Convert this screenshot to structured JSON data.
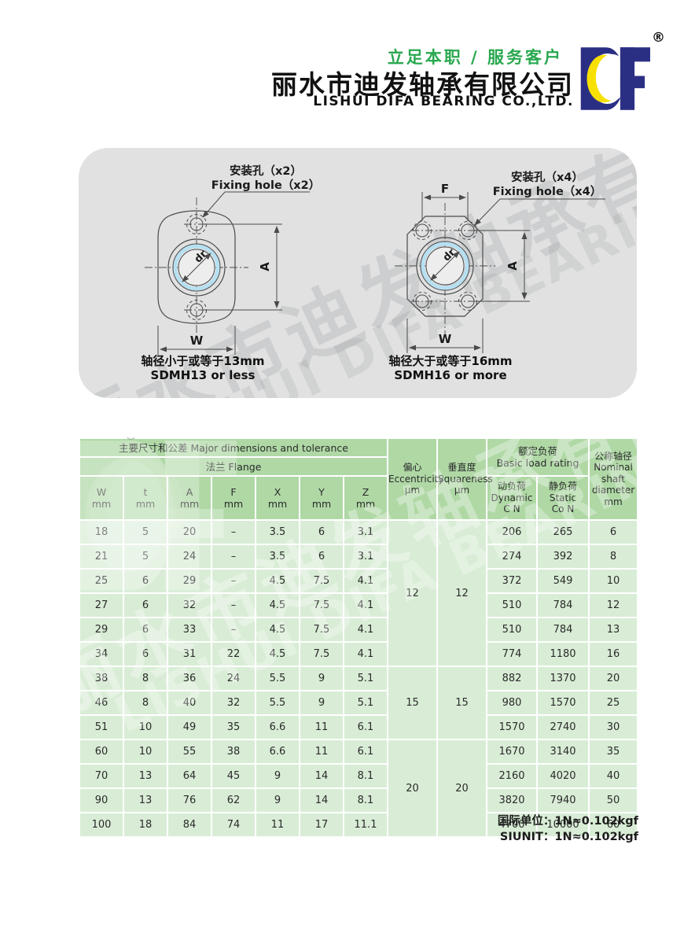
{
  "header": {
    "slogan": "立足本职 / 服务客户",
    "company_cn": "丽水市迪发轴承有限公司",
    "company_en": "LISHUI DIFA BEARING CO.,LTD.",
    "logo_text": "DF",
    "registered_mark": "®"
  },
  "colors": {
    "logo_navy": "#2b2f84",
    "logo_yellow": "#f8e000",
    "slogan_green": "#2aa84f",
    "panel_gray": "#e1e1e1",
    "header_green": "#afd8a5",
    "cell_green": "#d9edd6",
    "bore_blue": "#b5e0f2",
    "line_gray": "#4a4a4a",
    "table_text": "#2a2a2a"
  },
  "watermark": {
    "cn": "丽水市迪发轴承有限公司",
    "en": "LISHUI DIFA BEARING CO.,LTD."
  },
  "diagrams": {
    "left": {
      "hole_label_cn": "安装孔（x2）",
      "hole_label_en": "Fixing hole（x2）",
      "dim_a": "A",
      "dim_w": "W",
      "bore_label": "dr",
      "caption_cn": "轴径小于或等于13mm",
      "caption_en": "SDMH13 or less"
    },
    "right": {
      "hole_label_cn": "安装孔（x4）",
      "hole_label_en": "Fixing hole（x4）",
      "dim_f": "F",
      "dim_a": "A",
      "dim_w": "W",
      "bore_label": "dr",
      "caption_cn": "轴径大于或等于16mm",
      "caption_en": "SDMH16 or more"
    }
  },
  "table": {
    "headers": {
      "group_main": "主要尺寸和公差 Major dimensions and tolerance",
      "group_flange": "法兰 Flange",
      "cols": [
        "W\nmm",
        "t\nmm",
        "A\nmm",
        "F\nmm",
        "X\nmm",
        "Y\nmm",
        "Z\nmm"
      ],
      "eccentricity": "偏心\nEccentricity\nμm",
      "squareness": "垂直度\nSquareness\nμm",
      "load_group": "额定负荷\nBasic load rating",
      "dynamic": "动负荷\nDynamic\nC N",
      "static": "静负荷\nStatic\nCo N",
      "nominal": "公称轴径\nNominal\nshaft\ndiameter\nmm"
    },
    "rows": [
      {
        "w": "18",
        "t": "5",
        "a": "20",
        "f": "–",
        "x": "3.5",
        "y": "6",
        "z": "3.1",
        "dynamic": "206",
        "static": "265",
        "dia": "6"
      },
      {
        "w": "21",
        "t": "5",
        "a": "24",
        "f": "–",
        "x": "3.5",
        "y": "6",
        "z": "3.1",
        "dynamic": "274",
        "static": "392",
        "dia": "8"
      },
      {
        "w": "25",
        "t": "6",
        "a": "29",
        "f": "–",
        "x": "4.5",
        "y": "7.5",
        "z": "4.1",
        "dynamic": "372",
        "static": "549",
        "dia": "10"
      },
      {
        "w": "27",
        "t": "6",
        "a": "32",
        "f": "–",
        "x": "4.5",
        "y": "7.5",
        "z": "4.1",
        "dynamic": "510",
        "static": "784",
        "dia": "12"
      },
      {
        "w": "29",
        "t": "6",
        "a": "33",
        "f": "–",
        "x": "4.5",
        "y": "7.5",
        "z": "4.1",
        "dynamic": "510",
        "static": "784",
        "dia": "13"
      },
      {
        "w": "34",
        "t": "6",
        "a": "31",
        "f": "22",
        "x": "4.5",
        "y": "7.5",
        "z": "4.1",
        "dynamic": "774",
        "static": "1180",
        "dia": "16"
      },
      {
        "w": "38",
        "t": "8",
        "a": "36",
        "f": "24",
        "x": "5.5",
        "y": "9",
        "z": "5.1",
        "dynamic": "882",
        "static": "1370",
        "dia": "20"
      },
      {
        "w": "46",
        "t": "8",
        "a": "40",
        "f": "32",
        "x": "5.5",
        "y": "9",
        "z": "5.1",
        "dynamic": "980",
        "static": "1570",
        "dia": "25"
      },
      {
        "w": "51",
        "t": "10",
        "a": "49",
        "f": "35",
        "x": "6.6",
        "y": "11",
        "z": "6.1",
        "dynamic": "1570",
        "static": "2740",
        "dia": "30"
      },
      {
        "w": "60",
        "t": "10",
        "a": "55",
        "f": "38",
        "x": "6.6",
        "y": "11",
        "z": "6.1",
        "dynamic": "1670",
        "static": "3140",
        "dia": "35"
      },
      {
        "w": "70",
        "t": "13",
        "a": "64",
        "f": "45",
        "x": "9",
        "y": "14",
        "z": "8.1",
        "dynamic": "2160",
        "static": "4020",
        "dia": "40"
      },
      {
        "w": "90",
        "t": "13",
        "a": "76",
        "f": "62",
        "x": "9",
        "y": "14",
        "z": "8.1",
        "dynamic": "3820",
        "static": "7940",
        "dia": "50"
      },
      {
        "w": "100",
        "t": "18",
        "a": "84",
        "f": "74",
        "x": "11",
        "y": "17",
        "z": "11.1",
        "dynamic": "4700",
        "static": "10000",
        "dia": "60"
      }
    ],
    "groups": [
      {
        "rows": 6,
        "eccentricity": "12",
        "squareness": "12"
      },
      {
        "rows": 3,
        "eccentricity": "15",
        "squareness": "15"
      },
      {
        "rows": 4,
        "eccentricity": "20",
        "squareness": "20"
      }
    ]
  },
  "footer": {
    "note_cn": "国际单位：1N≈0.102kgf",
    "note_en": "SIUNIT：1N≈0.102kgf"
  }
}
